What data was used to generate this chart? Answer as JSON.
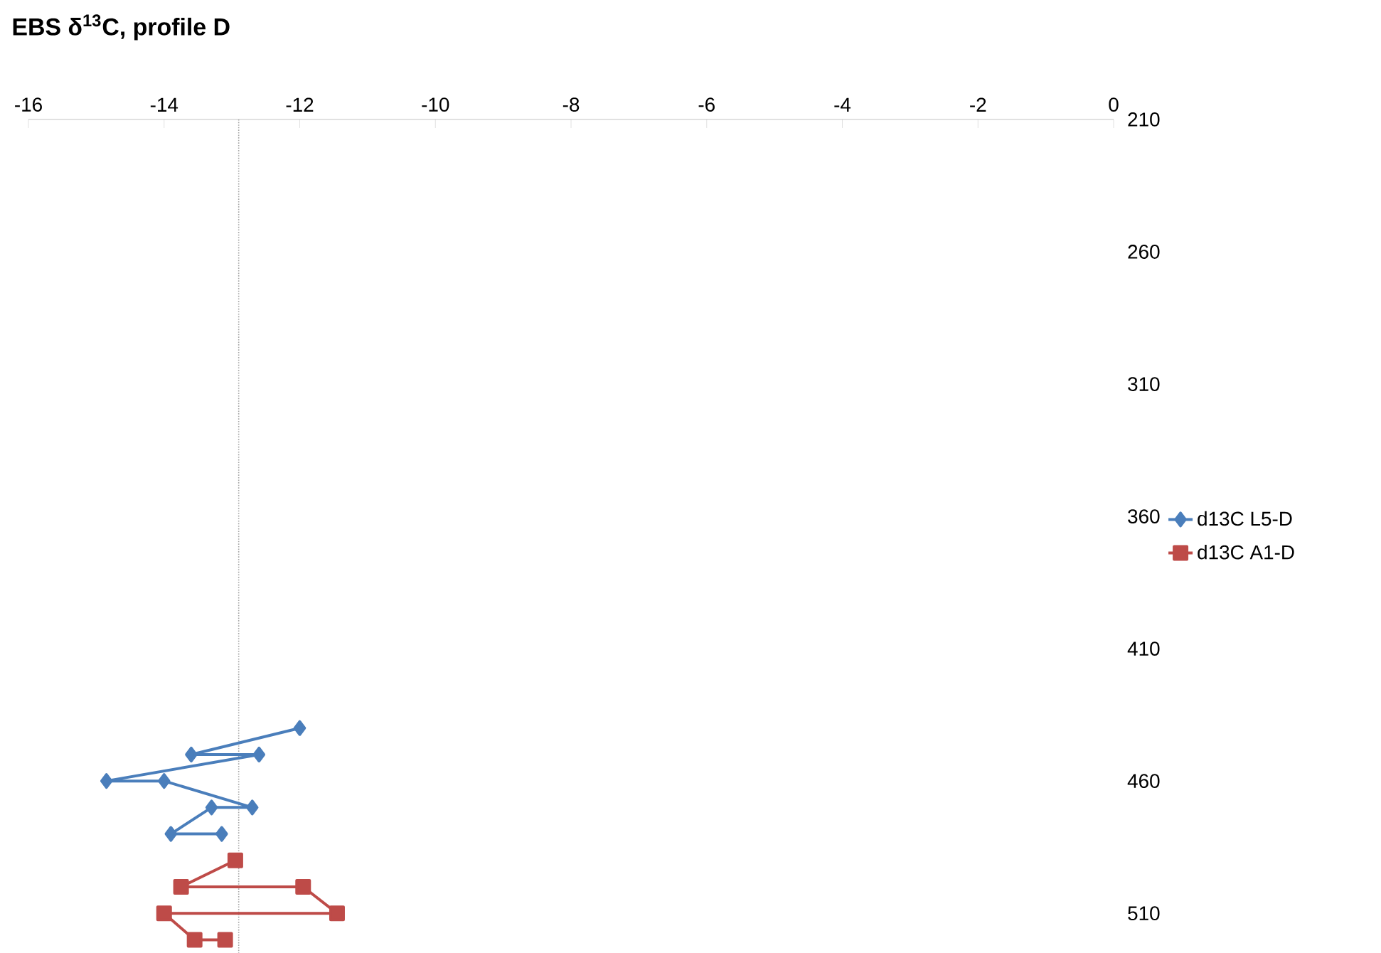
{
  "chart_data": {
    "type": "line",
    "title": "**EBS δ$^{13}$C, profile D**",
    "xlim": [
      -16,
      0
    ],
    "xticks": [
      -16,
      -14,
      -12,
      -10,
      -8,
      -6,
      -4,
      -2,
      0
    ],
    "ylim": [
      525,
      210
    ],
    "yticks": [
      210,
      260,
      310,
      360,
      410,
      460,
      510
    ],
    "grid": false,
    "legend": "right",
    "ref_lines": [
      {
        "axis": "x",
        "value": -12.9,
        "color": "#a6a6a6",
        "line_style": "dotted"
      }
    ],
    "series": [
      {
        "name": "d13C L5-D",
        "color": "#4a7ebb",
        "marker": "diamond",
        "x": [
          -12.0,
          -13.6,
          -12.6,
          -14.85,
          -14.0,
          -12.7,
          -13.3,
          -13.9,
          -13.15
        ],
        "values": [
          440,
          450,
          450,
          460,
          460,
          470,
          470,
          480,
          480
        ]
      },
      {
        "name": "d13C A1-D",
        "color": "#be4b48",
        "marker": "square",
        "x": [
          -12.95,
          -13.75,
          -11.95,
          -11.45,
          -14.0,
          -13.55,
          -13.1
        ],
        "values": [
          490,
          500,
          500,
          510,
          510,
          520,
          520
        ]
      }
    ]
  }
}
